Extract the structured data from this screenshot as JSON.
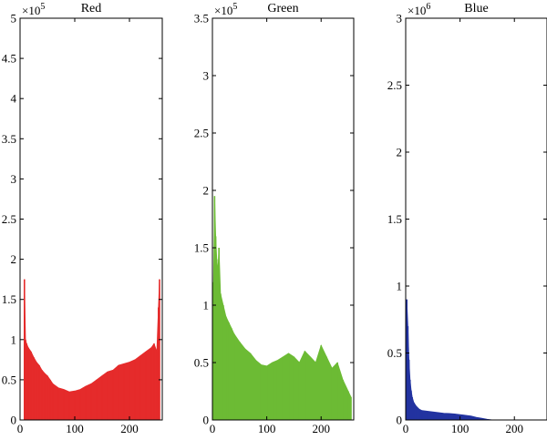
{
  "chart_data": [
    {
      "type": "bar",
      "title": "Red",
      "color": "#e52b2b",
      "multiplier_base": "×10",
      "multiplier_exp": "5",
      "xlim": [
        0,
        260
      ],
      "ylim": [
        0,
        5
      ],
      "xticks": [
        {
          "value": 0,
          "label": "0"
        },
        {
          "value": 100,
          "label": "100"
        },
        {
          "value": 200,
          "label": "200"
        }
      ],
      "yticks": [
        {
          "value": 0,
          "label": "0"
        },
        {
          "value": 0.5,
          "label": "0.5"
        },
        {
          "value": 1,
          "label": "1"
        },
        {
          "value": 1.5,
          "label": "1.5"
        },
        {
          "value": 2,
          "label": "2"
        },
        {
          "value": 2.5,
          "label": "2.5"
        },
        {
          "value": 3,
          "label": "3"
        },
        {
          "value": 3.5,
          "label": "3.5"
        },
        {
          "value": 4,
          "label": "4"
        },
        {
          "value": 4.5,
          "label": "4.5"
        },
        {
          "value": 5,
          "label": "5"
        }
      ],
      "x": [
        8,
        10,
        12,
        15,
        20,
        25,
        30,
        35,
        40,
        45,
        50,
        55,
        60,
        70,
        80,
        90,
        100,
        110,
        120,
        130,
        140,
        150,
        160,
        170,
        180,
        190,
        200,
        210,
        220,
        230,
        240,
        245,
        250,
        253,
        255
      ],
      "values": [
        1.75,
        1.0,
        0.95,
        0.9,
        0.85,
        0.78,
        0.72,
        0.68,
        0.62,
        0.58,
        0.55,
        0.5,
        0.45,
        0.4,
        0.38,
        0.35,
        0.36,
        0.38,
        0.42,
        0.45,
        0.5,
        0.55,
        0.6,
        0.62,
        0.68,
        0.7,
        0.72,
        0.75,
        0.8,
        0.85,
        0.9,
        0.95,
        0.85,
        1.4,
        1.75
      ]
    },
    {
      "type": "bar",
      "title": "Green",
      "color": "#6cbb34",
      "multiplier_base": "×10",
      "multiplier_exp": "5",
      "xlim": [
        0,
        260
      ],
      "ylim": [
        0,
        3.5
      ],
      "xticks": [
        {
          "value": 0,
          "label": "0"
        },
        {
          "value": 100,
          "label": "100"
        },
        {
          "value": 200,
          "label": "200"
        }
      ],
      "yticks": [
        {
          "value": 0,
          "label": "0"
        },
        {
          "value": 0.5,
          "label": "0.5"
        },
        {
          "value": 1,
          "label": "1"
        },
        {
          "value": 1.5,
          "label": "1.5"
        },
        {
          "value": 2,
          "label": "2"
        },
        {
          "value": 2.5,
          "label": "2.5"
        },
        {
          "value": 3,
          "label": "3"
        },
        {
          "value": 3.5,
          "label": "3.5"
        }
      ],
      "x": [
        2,
        4,
        6,
        8,
        10,
        12,
        15,
        20,
        25,
        30,
        35,
        40,
        50,
        60,
        70,
        80,
        90,
        100,
        110,
        120,
        130,
        140,
        150,
        160,
        170,
        180,
        190,
        200,
        210,
        220,
        230,
        240,
        250,
        255
      ],
      "values": [
        1.2,
        1.95,
        1.6,
        1.4,
        1.3,
        1.5,
        1.1,
        1.0,
        0.9,
        0.85,
        0.8,
        0.75,
        0.68,
        0.62,
        0.58,
        0.52,
        0.48,
        0.47,
        0.5,
        0.52,
        0.55,
        0.58,
        0.55,
        0.5,
        0.6,
        0.55,
        0.5,
        0.65,
        0.55,
        0.45,
        0.5,
        0.35,
        0.25,
        0.2
      ]
    },
    {
      "type": "bar",
      "title": "Blue",
      "color": "#2233a0",
      "multiplier_base": "×10",
      "multiplier_exp": "6",
      "xlim": [
        0,
        260
      ],
      "ylim": [
        0,
        3
      ],
      "xticks": [
        {
          "value": 0,
          "label": "0"
        },
        {
          "value": 100,
          "label": "100"
        },
        {
          "value": 200,
          "label": "200"
        }
      ],
      "yticks": [
        {
          "value": 0,
          "label": "0"
        },
        {
          "value": 0.5,
          "label": "0.5"
        },
        {
          "value": 1,
          "label": "1"
        },
        {
          "value": 1.5,
          "label": "1.5"
        },
        {
          "value": 2,
          "label": "2"
        },
        {
          "value": 2.5,
          "label": "2.5"
        },
        {
          "value": 3,
          "label": "3"
        }
      ],
      "x": [
        2,
        4,
        6,
        8,
        10,
        12,
        15,
        20,
        25,
        30,
        40,
        50,
        60,
        70,
        80,
        90,
        100,
        110,
        120,
        130,
        140,
        150,
        160
      ],
      "values": [
        0.9,
        0.7,
        0.45,
        0.3,
        0.22,
        0.17,
        0.13,
        0.1,
        0.08,
        0.07,
        0.065,
        0.06,
        0.055,
        0.05,
        0.048,
        0.045,
        0.04,
        0.035,
        0.03,
        0.02,
        0.012,
        0.005,
        0.0
      ]
    }
  ]
}
